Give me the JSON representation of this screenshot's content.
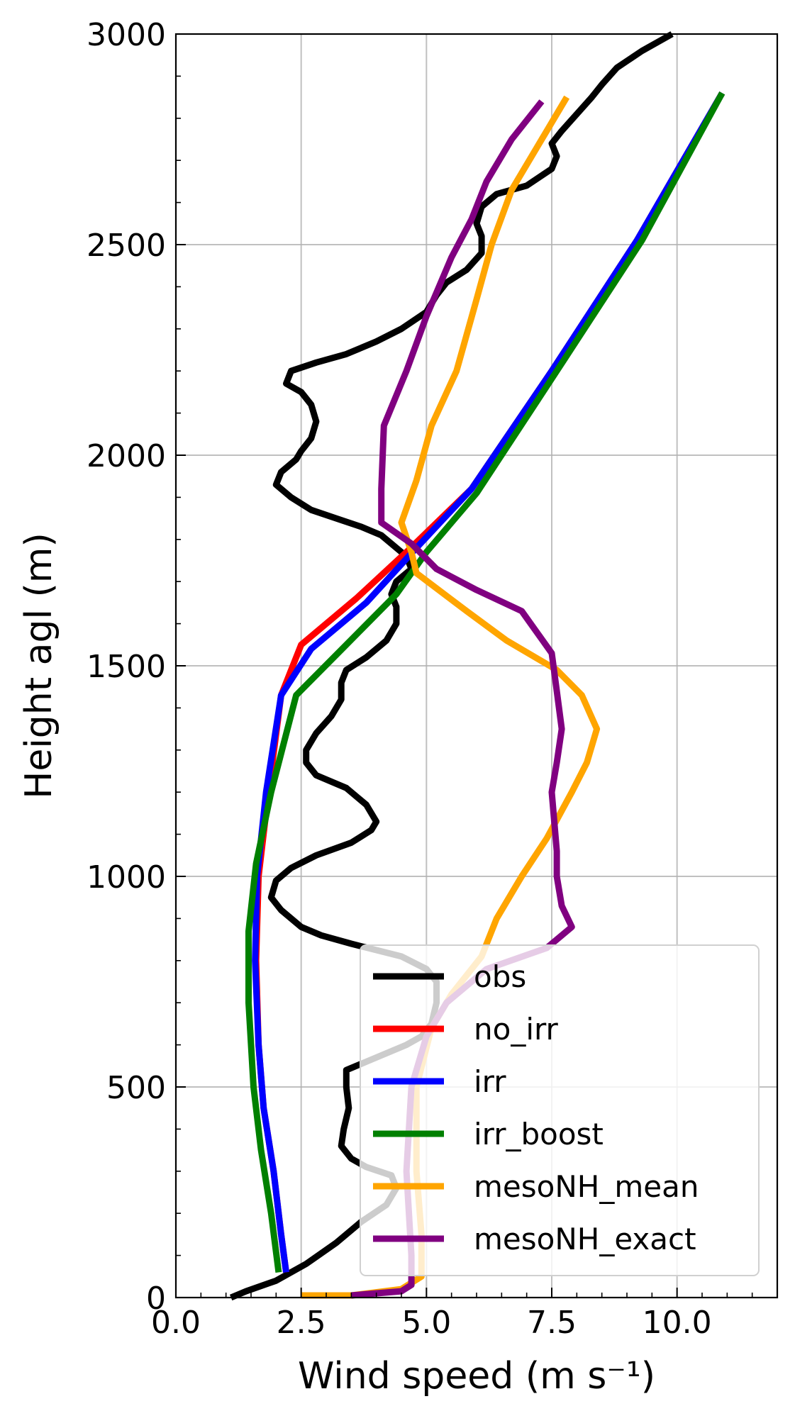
{
  "chart_data": {
    "type": "line",
    "xlabel": "Wind speed (m s⁻¹)",
    "ylabel": "Height agl (m)",
    "xlim": [
      0,
      12
    ],
    "ylim": [
      0,
      3000
    ],
    "xticks": [
      0,
      2.5,
      5,
      7.5,
      10
    ],
    "xtick_labels": [
      "0.0",
      "2.5",
      "5.0",
      "7.5",
      "10.0"
    ],
    "yticks": [
      0,
      500,
      1000,
      1500,
      2000,
      2500,
      3000
    ],
    "ytick_labels": [
      "0",
      "500",
      "1000",
      "1500",
      "2000",
      "2500",
      "3000"
    ],
    "grid": true,
    "legend_position": "lower right",
    "series": [
      {
        "name": "obs",
        "color": "#000000",
        "points": [
          [
            1.1,
            0
          ],
          [
            1.4,
            15
          ],
          [
            2.0,
            40
          ],
          [
            2.6,
            80
          ],
          [
            3.2,
            130
          ],
          [
            3.7,
            180
          ],
          [
            4.2,
            220
          ],
          [
            4.4,
            260
          ],
          [
            4.3,
            290
          ],
          [
            3.8,
            310
          ],
          [
            3.5,
            330
          ],
          [
            3.3,
            360
          ],
          [
            3.35,
            400
          ],
          [
            3.45,
            450
          ],
          [
            3.4,
            500
          ],
          [
            3.4,
            540
          ],
          [
            3.8,
            560
          ],
          [
            4.2,
            580
          ],
          [
            4.6,
            600
          ],
          [
            4.9,
            620
          ],
          [
            5.1,
            650
          ],
          [
            5.2,
            700
          ],
          [
            5.2,
            750
          ],
          [
            5.0,
            780
          ],
          [
            4.5,
            810
          ],
          [
            3.5,
            840
          ],
          [
            2.9,
            860
          ],
          [
            2.5,
            880
          ],
          [
            2.1,
            920
          ],
          [
            1.9,
            950
          ],
          [
            2.0,
            990
          ],
          [
            2.3,
            1020
          ],
          [
            2.8,
            1050
          ],
          [
            3.5,
            1080
          ],
          [
            3.9,
            1110
          ],
          [
            4.0,
            1130
          ],
          [
            3.8,
            1170
          ],
          [
            3.4,
            1210
          ],
          [
            2.8,
            1240
          ],
          [
            2.6,
            1270
          ],
          [
            2.6,
            1300
          ],
          [
            2.8,
            1340
          ],
          [
            3.1,
            1380
          ],
          [
            3.3,
            1420
          ],
          [
            3.3,
            1460
          ],
          [
            3.4,
            1490
          ],
          [
            3.8,
            1520
          ],
          [
            4.2,
            1560
          ],
          [
            4.4,
            1600
          ],
          [
            4.4,
            1640
          ],
          [
            4.3,
            1670
          ],
          [
            4.4,
            1700
          ],
          [
            4.7,
            1730
          ],
          [
            4.6,
            1760
          ],
          [
            4.4,
            1780
          ],
          [
            4.1,
            1810
          ],
          [
            3.7,
            1830
          ],
          [
            3.2,
            1850
          ],
          [
            2.7,
            1870
          ],
          [
            2.3,
            1900
          ],
          [
            2.0,
            1930
          ],
          [
            2.1,
            1960
          ],
          [
            2.4,
            1990
          ],
          [
            2.5,
            2010
          ],
          [
            2.7,
            2040
          ],
          [
            2.8,
            2080
          ],
          [
            2.7,
            2120
          ],
          [
            2.5,
            2150
          ],
          [
            2.2,
            2170
          ],
          [
            2.3,
            2200
          ],
          [
            2.8,
            2220
          ],
          [
            3.4,
            2240
          ],
          [
            4.0,
            2270
          ],
          [
            4.5,
            2300
          ],
          [
            5.0,
            2340
          ],
          [
            5.2,
            2380
          ],
          [
            5.4,
            2410
          ],
          [
            5.8,
            2440
          ],
          [
            6.1,
            2480
          ],
          [
            6.1,
            2520
          ],
          [
            6.0,
            2550
          ],
          [
            6.1,
            2590
          ],
          [
            6.4,
            2620
          ],
          [
            7.0,
            2640
          ],
          [
            7.5,
            2680
          ],
          [
            7.6,
            2710
          ],
          [
            7.5,
            2740
          ],
          [
            7.7,
            2770
          ],
          [
            8.0,
            2810
          ],
          [
            8.3,
            2850
          ],
          [
            8.5,
            2880
          ],
          [
            8.8,
            2920
          ],
          [
            9.3,
            2960
          ],
          [
            9.9,
            3000
          ]
        ]
      },
      {
        "name": "no_irr",
        "color": "#ff0000",
        "points": [
          [
            2.2,
            60
          ],
          [
            2.1,
            150
          ],
          [
            1.95,
            300
          ],
          [
            1.75,
            450
          ],
          [
            1.65,
            600
          ],
          [
            1.6,
            800
          ],
          [
            1.65,
            1000
          ],
          [
            1.85,
            1200
          ],
          [
            2.1,
            1430
          ],
          [
            2.5,
            1550
          ],
          [
            3.6,
            1660
          ],
          [
            4.6,
            1770
          ],
          [
            5.9,
            1920
          ],
          [
            7.5,
            2200
          ],
          [
            9.2,
            2510
          ],
          [
            10.9,
            2860
          ]
        ]
      },
      {
        "name": "irr",
        "color": "#0000ff",
        "points": [
          [
            2.2,
            60
          ],
          [
            2.1,
            150
          ],
          [
            1.95,
            300
          ],
          [
            1.75,
            450
          ],
          [
            1.65,
            600
          ],
          [
            1.58,
            800
          ],
          [
            1.62,
            1000
          ],
          [
            1.8,
            1200
          ],
          [
            2.1,
            1430
          ],
          [
            2.7,
            1540
          ],
          [
            3.8,
            1650
          ],
          [
            4.8,
            1780
          ],
          [
            5.9,
            1920
          ],
          [
            7.5,
            2200
          ],
          [
            9.2,
            2510
          ],
          [
            10.9,
            2860
          ]
        ]
      },
      {
        "name": "irr_boost",
        "color": "#008000",
        "points": [
          [
            2.05,
            60
          ],
          [
            1.9,
            200
          ],
          [
            1.7,
            350
          ],
          [
            1.55,
            500
          ],
          [
            1.45,
            700
          ],
          [
            1.45,
            870
          ],
          [
            1.6,
            1030
          ],
          [
            1.9,
            1200
          ],
          [
            2.4,
            1430
          ],
          [
            3.4,
            1550
          ],
          [
            4.4,
            1670
          ],
          [
            5.0,
            1770
          ],
          [
            6.0,
            1910
          ],
          [
            7.6,
            2200
          ],
          [
            9.3,
            2510
          ],
          [
            10.9,
            2860
          ]
        ]
      },
      {
        "name": "mesoNH_mean",
        "color": "#ffa500",
        "points": [
          [
            2.5,
            5
          ],
          [
            3.5,
            5
          ],
          [
            4.5,
            20
          ],
          [
            4.9,
            50
          ],
          [
            4.9,
            150
          ],
          [
            4.8,
            300
          ],
          [
            4.8,
            500
          ],
          [
            5.1,
            640
          ],
          [
            5.5,
            720
          ],
          [
            6.1,
            810
          ],
          [
            6.4,
            900
          ],
          [
            6.9,
            1000
          ],
          [
            7.4,
            1090
          ],
          [
            7.9,
            1200
          ],
          [
            8.2,
            1270
          ],
          [
            8.4,
            1350
          ],
          [
            8.1,
            1430
          ],
          [
            7.6,
            1490
          ],
          [
            6.6,
            1560
          ],
          [
            5.8,
            1630
          ],
          [
            4.8,
            1720
          ],
          [
            4.7,
            1770
          ],
          [
            4.5,
            1840
          ],
          [
            4.8,
            1940
          ],
          [
            5.1,
            2070
          ],
          [
            5.6,
            2200
          ],
          [
            6.0,
            2370
          ],
          [
            6.3,
            2500
          ],
          [
            6.7,
            2630
          ],
          [
            7.2,
            2730
          ],
          [
            7.8,
            2850
          ]
        ]
      },
      {
        "name": "mesoNH_exact",
        "color": "#800080",
        "points": [
          [
            3.5,
            5
          ],
          [
            4.5,
            15
          ],
          [
            4.7,
            30
          ],
          [
            4.7,
            100
          ],
          [
            4.6,
            300
          ],
          [
            4.7,
            500
          ],
          [
            5.0,
            620
          ],
          [
            5.4,
            700
          ],
          [
            6.2,
            780
          ],
          [
            7.4,
            830
          ],
          [
            7.9,
            880
          ],
          [
            7.7,
            930
          ],
          [
            7.6,
            1000
          ],
          [
            7.6,
            1060
          ],
          [
            7.5,
            1200
          ],
          [
            7.6,
            1270
          ],
          [
            7.7,
            1350
          ],
          [
            7.6,
            1440
          ],
          [
            7.5,
            1530
          ],
          [
            6.9,
            1630
          ],
          [
            6.0,
            1680
          ],
          [
            5.2,
            1730
          ],
          [
            4.7,
            1790
          ],
          [
            4.1,
            1840
          ],
          [
            4.1,
            1920
          ],
          [
            4.15,
            2070
          ],
          [
            4.6,
            2200
          ],
          [
            5.0,
            2330
          ],
          [
            5.5,
            2470
          ],
          [
            5.9,
            2560
          ],
          [
            6.2,
            2650
          ],
          [
            6.7,
            2750
          ],
          [
            7.3,
            2840
          ]
        ]
      }
    ]
  }
}
